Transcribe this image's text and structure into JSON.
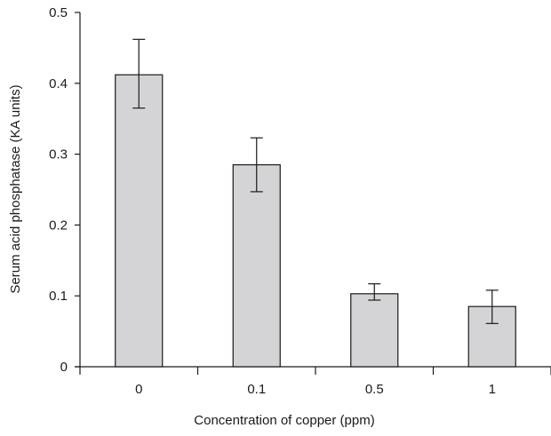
{
  "chart_data": {
    "type": "bar",
    "title": "",
    "xlabel": "Concentration of copper (ppm)",
    "ylabel": "Serum acid phosphatase (KA units)",
    "categories": [
      "0",
      "0.1",
      "0.5",
      "1"
    ],
    "values": [
      0.412,
      0.285,
      0.103,
      0.085
    ],
    "error_low": [
      0.365,
      0.247,
      0.094,
      0.061
    ],
    "error_high": [
      0.462,
      0.323,
      0.117,
      0.108
    ],
    "ylim": [
      0,
      0.5
    ],
    "yticks": [
      0,
      0.1,
      0.2,
      0.3,
      0.4,
      0.5
    ],
    "ytick_labels": [
      "0",
      "0.1",
      "0.2",
      "0.3",
      "0.4",
      "0.5"
    ],
    "grid": false,
    "legend": "none",
    "colors": {
      "bar_fill": "#d4d4d6",
      "bar_stroke": "#1a1a1a",
      "axis": "#1a1a1a"
    }
  }
}
